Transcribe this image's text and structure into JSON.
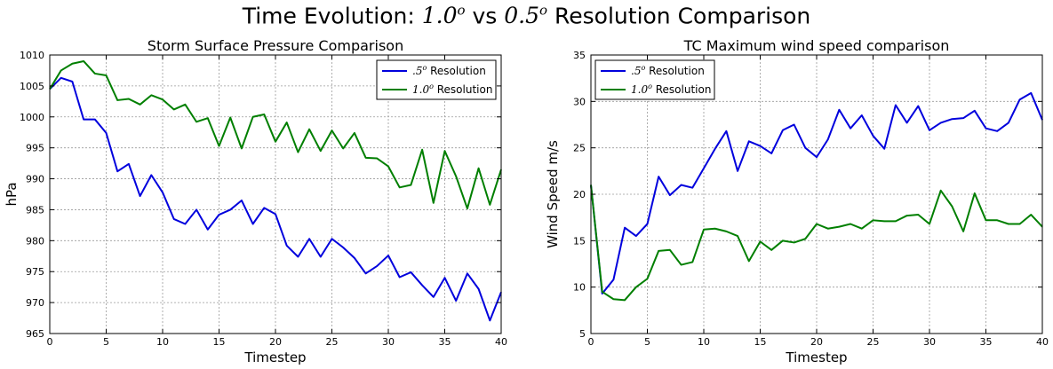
{
  "figure": {
    "title_parts": {
      "prefix": "Time Evolution: ",
      "res_a": "1.0",
      "res_a_sup": "o",
      "middle": " vs ",
      "res_b": "0.5",
      "res_b_sup": "o",
      "suffix": " Resolution Comparison"
    }
  },
  "colors": {
    "half_degree": "#0000dd",
    "one_degree": "#007f00"
  },
  "chart_data": [
    {
      "type": "line",
      "title": "Storm Surface Pressure Comparison",
      "xlabel": "Timestep",
      "ylabel": "hPa",
      "xlim": [
        0,
        40
      ],
      "ylim": [
        965,
        1010
      ],
      "xticks": [
        0,
        5,
        10,
        15,
        20,
        25,
        30,
        35,
        40
      ],
      "yticks": [
        965,
        970,
        975,
        980,
        985,
        990,
        995,
        1000,
        1005,
        1010
      ],
      "grid": true,
      "legend_position": "top-right",
      "x": [
        0,
        1,
        2,
        3,
        4,
        5,
        6,
        7,
        8,
        9,
        10,
        11,
        12,
        13,
        14,
        15,
        16,
        17,
        18,
        19,
        20,
        21,
        22,
        23,
        24,
        25,
        26,
        27,
        28,
        29,
        30,
        31,
        32,
        33,
        34,
        35,
        36,
        37,
        38,
        39,
        40
      ],
      "series": [
        {
          "name": " Resolution",
          "name_math": ".5",
          "name_sup": "o",
          "color_key": "half_degree",
          "values": [
            1004.5,
            1006.3,
            1005.7,
            999.6,
            999.6,
            997.4,
            991.2,
            992.4,
            987.2,
            990.6,
            987.8,
            983.5,
            982.7,
            985.0,
            981.8,
            984.2,
            985.0,
            986.5,
            982.7,
            985.3,
            984.3,
            979.2,
            977.4,
            980.3,
            977.4,
            980.3,
            978.9,
            977.2,
            974.7,
            975.9,
            977.6,
            974.1,
            974.9,
            972.8,
            970.9,
            974.0,
            970.3,
            974.7,
            972.2,
            967.1,
            971.7
          ]
        },
        {
          "name": " Resolution",
          "name_math": "1.0",
          "name_sup": "o",
          "color_key": "one_degree",
          "values": [
            1004.5,
            1007.5,
            1008.6,
            1009.0,
            1007.0,
            1006.7,
            1002.7,
            1002.9,
            1002.0,
            1003.5,
            1002.8,
            1001.2,
            1002.0,
            999.2,
            999.8,
            995.3,
            999.9,
            994.9,
            1000.0,
            1000.4,
            996.0,
            999.1,
            994.3,
            998.0,
            994.5,
            997.8,
            994.9,
            997.4,
            993.4,
            993.3,
            992.0,
            988.6,
            989.0,
            994.7,
            986.1,
            994.5,
            990.4,
            985.2,
            991.7,
            985.8,
            991.5
          ]
        }
      ]
    },
    {
      "type": "line",
      "title": "TC Maximum wind speed comparison",
      "xlabel": "Timestep",
      "ylabel": "Wind Speed m/s",
      "xlim": [
        0,
        40
      ],
      "ylim": [
        5,
        35
      ],
      "xticks": [
        0,
        5,
        10,
        15,
        20,
        25,
        30,
        35,
        40
      ],
      "yticks": [
        5,
        10,
        15,
        20,
        25,
        30,
        35
      ],
      "grid": true,
      "legend_position": "top-left",
      "x": [
        0,
        1,
        2,
        3,
        4,
        5,
        6,
        7,
        8,
        9,
        10,
        11,
        12,
        13,
        14,
        15,
        16,
        17,
        18,
        19,
        20,
        21,
        22,
        23,
        24,
        25,
        26,
        27,
        28,
        29,
        30,
        31,
        32,
        33,
        34,
        35,
        36,
        37,
        38,
        39,
        40
      ],
      "series": [
        {
          "name": " Resolution",
          "name_math": ".5",
          "name_sup": "o",
          "color_key": "half_degree",
          "values": [
            21.0,
            9.3,
            10.8,
            16.4,
            15.5,
            16.8,
            21.9,
            19.9,
            21.0,
            20.7,
            22.8,
            24.9,
            26.8,
            22.5,
            25.7,
            25.2,
            24.4,
            26.9,
            27.5,
            25.0,
            24.0,
            25.9,
            29.1,
            27.1,
            28.5,
            26.3,
            24.9,
            29.6,
            27.7,
            29.5,
            26.9,
            27.7,
            28.1,
            28.2,
            29.0,
            27.1,
            26.8,
            27.7,
            30.2,
            30.9,
            28.0
          ]
        },
        {
          "name": " Resolution",
          "name_math": "1.0",
          "name_sup": "o",
          "color_key": "one_degree",
          "values": [
            21.0,
            9.5,
            8.7,
            8.6,
            10.0,
            10.9,
            13.9,
            14.0,
            12.4,
            12.7,
            16.2,
            16.3,
            16.0,
            15.5,
            12.8,
            14.9,
            14.0,
            15.0,
            14.8,
            15.2,
            16.8,
            16.3,
            16.5,
            16.8,
            16.3,
            17.2,
            17.1,
            17.1,
            17.7,
            17.8,
            16.8,
            20.4,
            18.7,
            16.0,
            20.1,
            17.2,
            17.2,
            16.8,
            16.8,
            17.8,
            16.5
          ]
        }
      ]
    }
  ]
}
